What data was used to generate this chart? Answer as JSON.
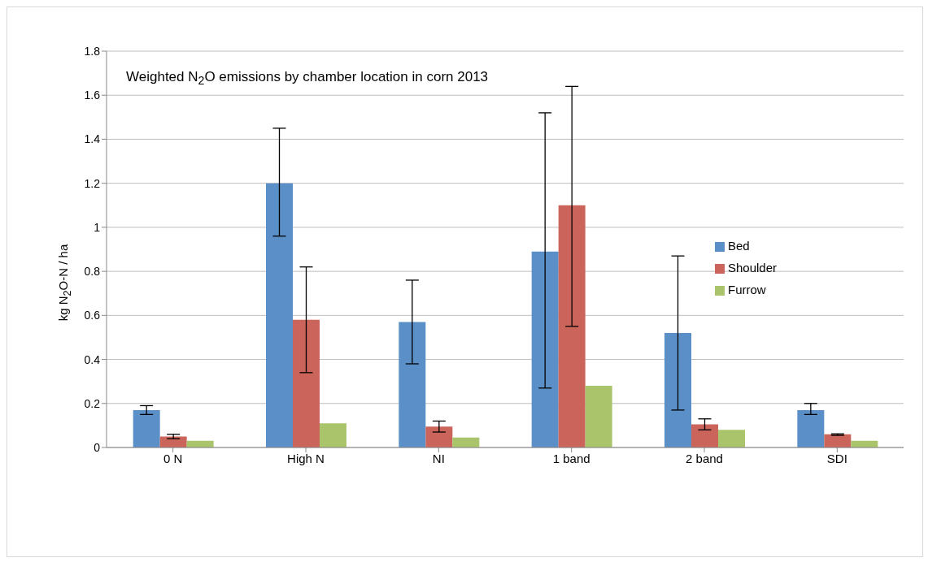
{
  "chart_data": {
    "type": "bar",
    "title": "Weighted N$_{2}$O emissions by chamber location  in corn 2013",
    "ylabel": "kg N$_{2}$O-N / ha",
    "categories": [
      "0 N",
      "High N",
      "NI",
      "1 band",
      "2 band",
      "SDI"
    ],
    "series": [
      {
        "name": "Bed",
        "color": "#5b8fc7",
        "values": [
          0.17,
          1.2,
          0.57,
          0.89,
          0.52,
          0.17
        ],
        "errors": [
          [
            0.15,
            0.19
          ],
          [
            0.96,
            1.45
          ],
          [
            0.38,
            0.76
          ],
          [
            0.27,
            1.52
          ],
          [
            0.17,
            0.87
          ],
          [
            0.15,
            0.2
          ]
        ]
      },
      {
        "name": "Shoulder",
        "color": "#cb645a",
        "values": [
          0.05,
          0.58,
          0.095,
          1.1,
          0.105,
          0.06
        ],
        "errors": [
          [
            0.04,
            0.06
          ],
          [
            0.34,
            0.82
          ],
          [
            0.07,
            0.12
          ],
          [
            0.55,
            1.64
          ],
          [
            0.08,
            0.13
          ],
          [
            0.055,
            0.062
          ]
        ]
      },
      {
        "name": "Furrow",
        "color": "#a9c46a",
        "values": [
          0.03,
          0.11,
          0.045,
          0.28,
          0.08,
          0.03
        ]
      }
    ],
    "ylim": [
      0,
      1.8
    ],
    "yticks": [
      0,
      0.2,
      0.4,
      0.6,
      0.8,
      1,
      1.2,
      1.4,
      1.6,
      1.8
    ],
    "grid": "y",
    "legend": "right"
  }
}
